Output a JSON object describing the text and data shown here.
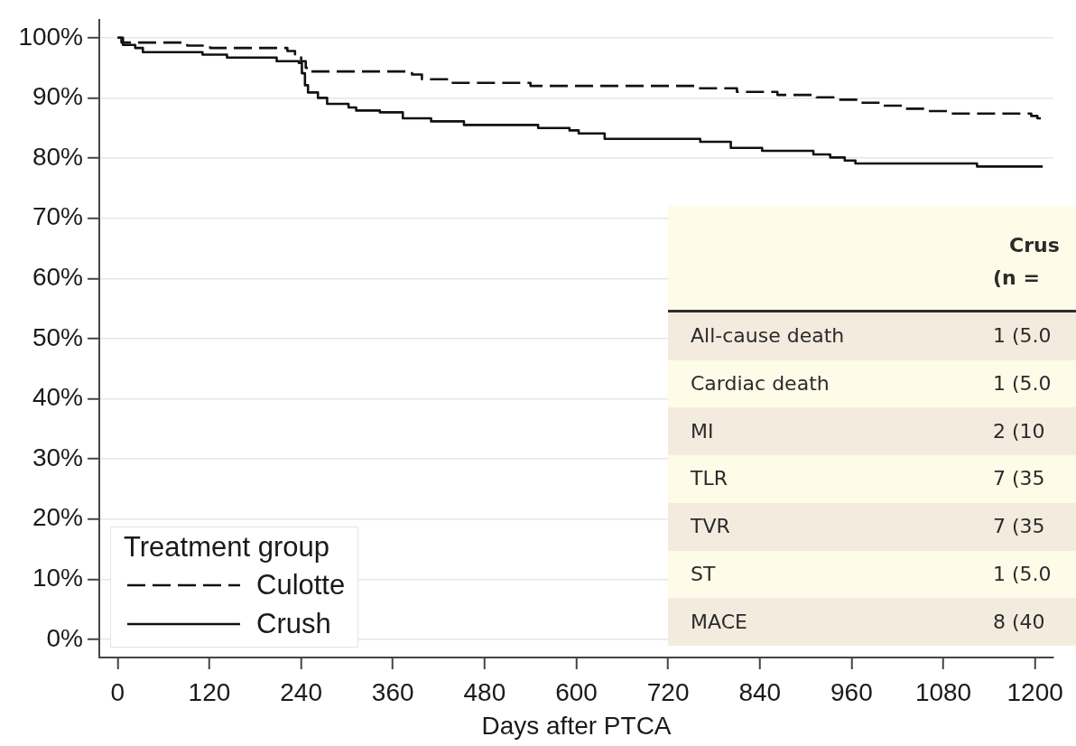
{
  "chart_data": {
    "type": "step",
    "xlabel": "Days after PTCA",
    "legend_title": "Treatment group",
    "legend": "bottom left",
    "grid": "y",
    "marker": "none",
    "xlim": [
      -24,
      1224
    ],
    "xticks": [
      0,
      120,
      240,
      360,
      480,
      600,
      720,
      840,
      960,
      1080,
      1200
    ],
    "ylim": [
      -3,
      103
    ],
    "yticks": [
      {
        "value": 0,
        "label": "0%"
      },
      {
        "value": 10,
        "label": "10%"
      },
      {
        "value": 20,
        "label": "20%"
      },
      {
        "value": 30,
        "label": "30%"
      },
      {
        "value": 40,
        "label": "40%"
      },
      {
        "value": 50,
        "label": "50%"
      },
      {
        "value": 60,
        "label": "60%"
      },
      {
        "value": 70,
        "label": "70%"
      },
      {
        "value": 80,
        "label": "80%"
      },
      {
        "value": 90,
        "label": "90%"
      },
      {
        "value": 100,
        "label": "100%"
      }
    ],
    "series": [
      {
        "name": "Culotte",
        "color": "#111111",
        "line_style": "dashed",
        "x": [
          0,
          5,
          91,
          121,
          222,
          232,
          240,
          246,
          252,
          385,
          398,
          436,
          540,
          758,
          810,
          863,
          914,
          941,
          971,
          1000,
          1030,
          1059,
          1091,
          1195,
          1203,
          1210
        ],
        "values": [
          100,
          99.2,
          98.7,
          98.3,
          97.8,
          97.0,
          96.1,
          95.0,
          94.4,
          93.9,
          93.1,
          92.5,
          92.0,
          91.6,
          91.0,
          90.5,
          90.1,
          89.7,
          89.2,
          88.7,
          88.2,
          87.8,
          87.4,
          87.0,
          86.6,
          86.6
        ]
      },
      {
        "name": "Crush",
        "color": "#111111",
        "line_style": "solid",
        "x": [
          0,
          7,
          23,
          33,
          111,
          143,
          208,
          237,
          241,
          245,
          249,
          262,
          274,
          302,
          312,
          343,
          373,
          410,
          453,
          550,
          591,
          603,
          637,
          762,
          802,
          843,
          910,
          932,
          951,
          965,
          1124,
          1210
        ],
        "values": [
          100,
          98.8,
          98.3,
          97.6,
          97.2,
          96.7,
          96.1,
          95.8,
          94.1,
          92.1,
          90.9,
          90.0,
          89.0,
          88.4,
          87.9,
          87.6,
          86.6,
          86.1,
          85.5,
          85.0,
          84.6,
          84.1,
          83.2,
          82.7,
          81.7,
          81.2,
          80.6,
          80.1,
          79.6,
          79.1,
          78.6,
          78.6
        ]
      }
    ],
    "annotations": [
      "Crus",
      "(n =",
      "All-cause death",
      "1 (5.0",
      "Cardiac death",
      "1 (5.0",
      "MI",
      "2 (10",
      "TLR",
      "7 (35",
      "TVR",
      "7 (35",
      "ST",
      "1 (5.0",
      "MACE",
      "8 (40"
    ]
  }
}
